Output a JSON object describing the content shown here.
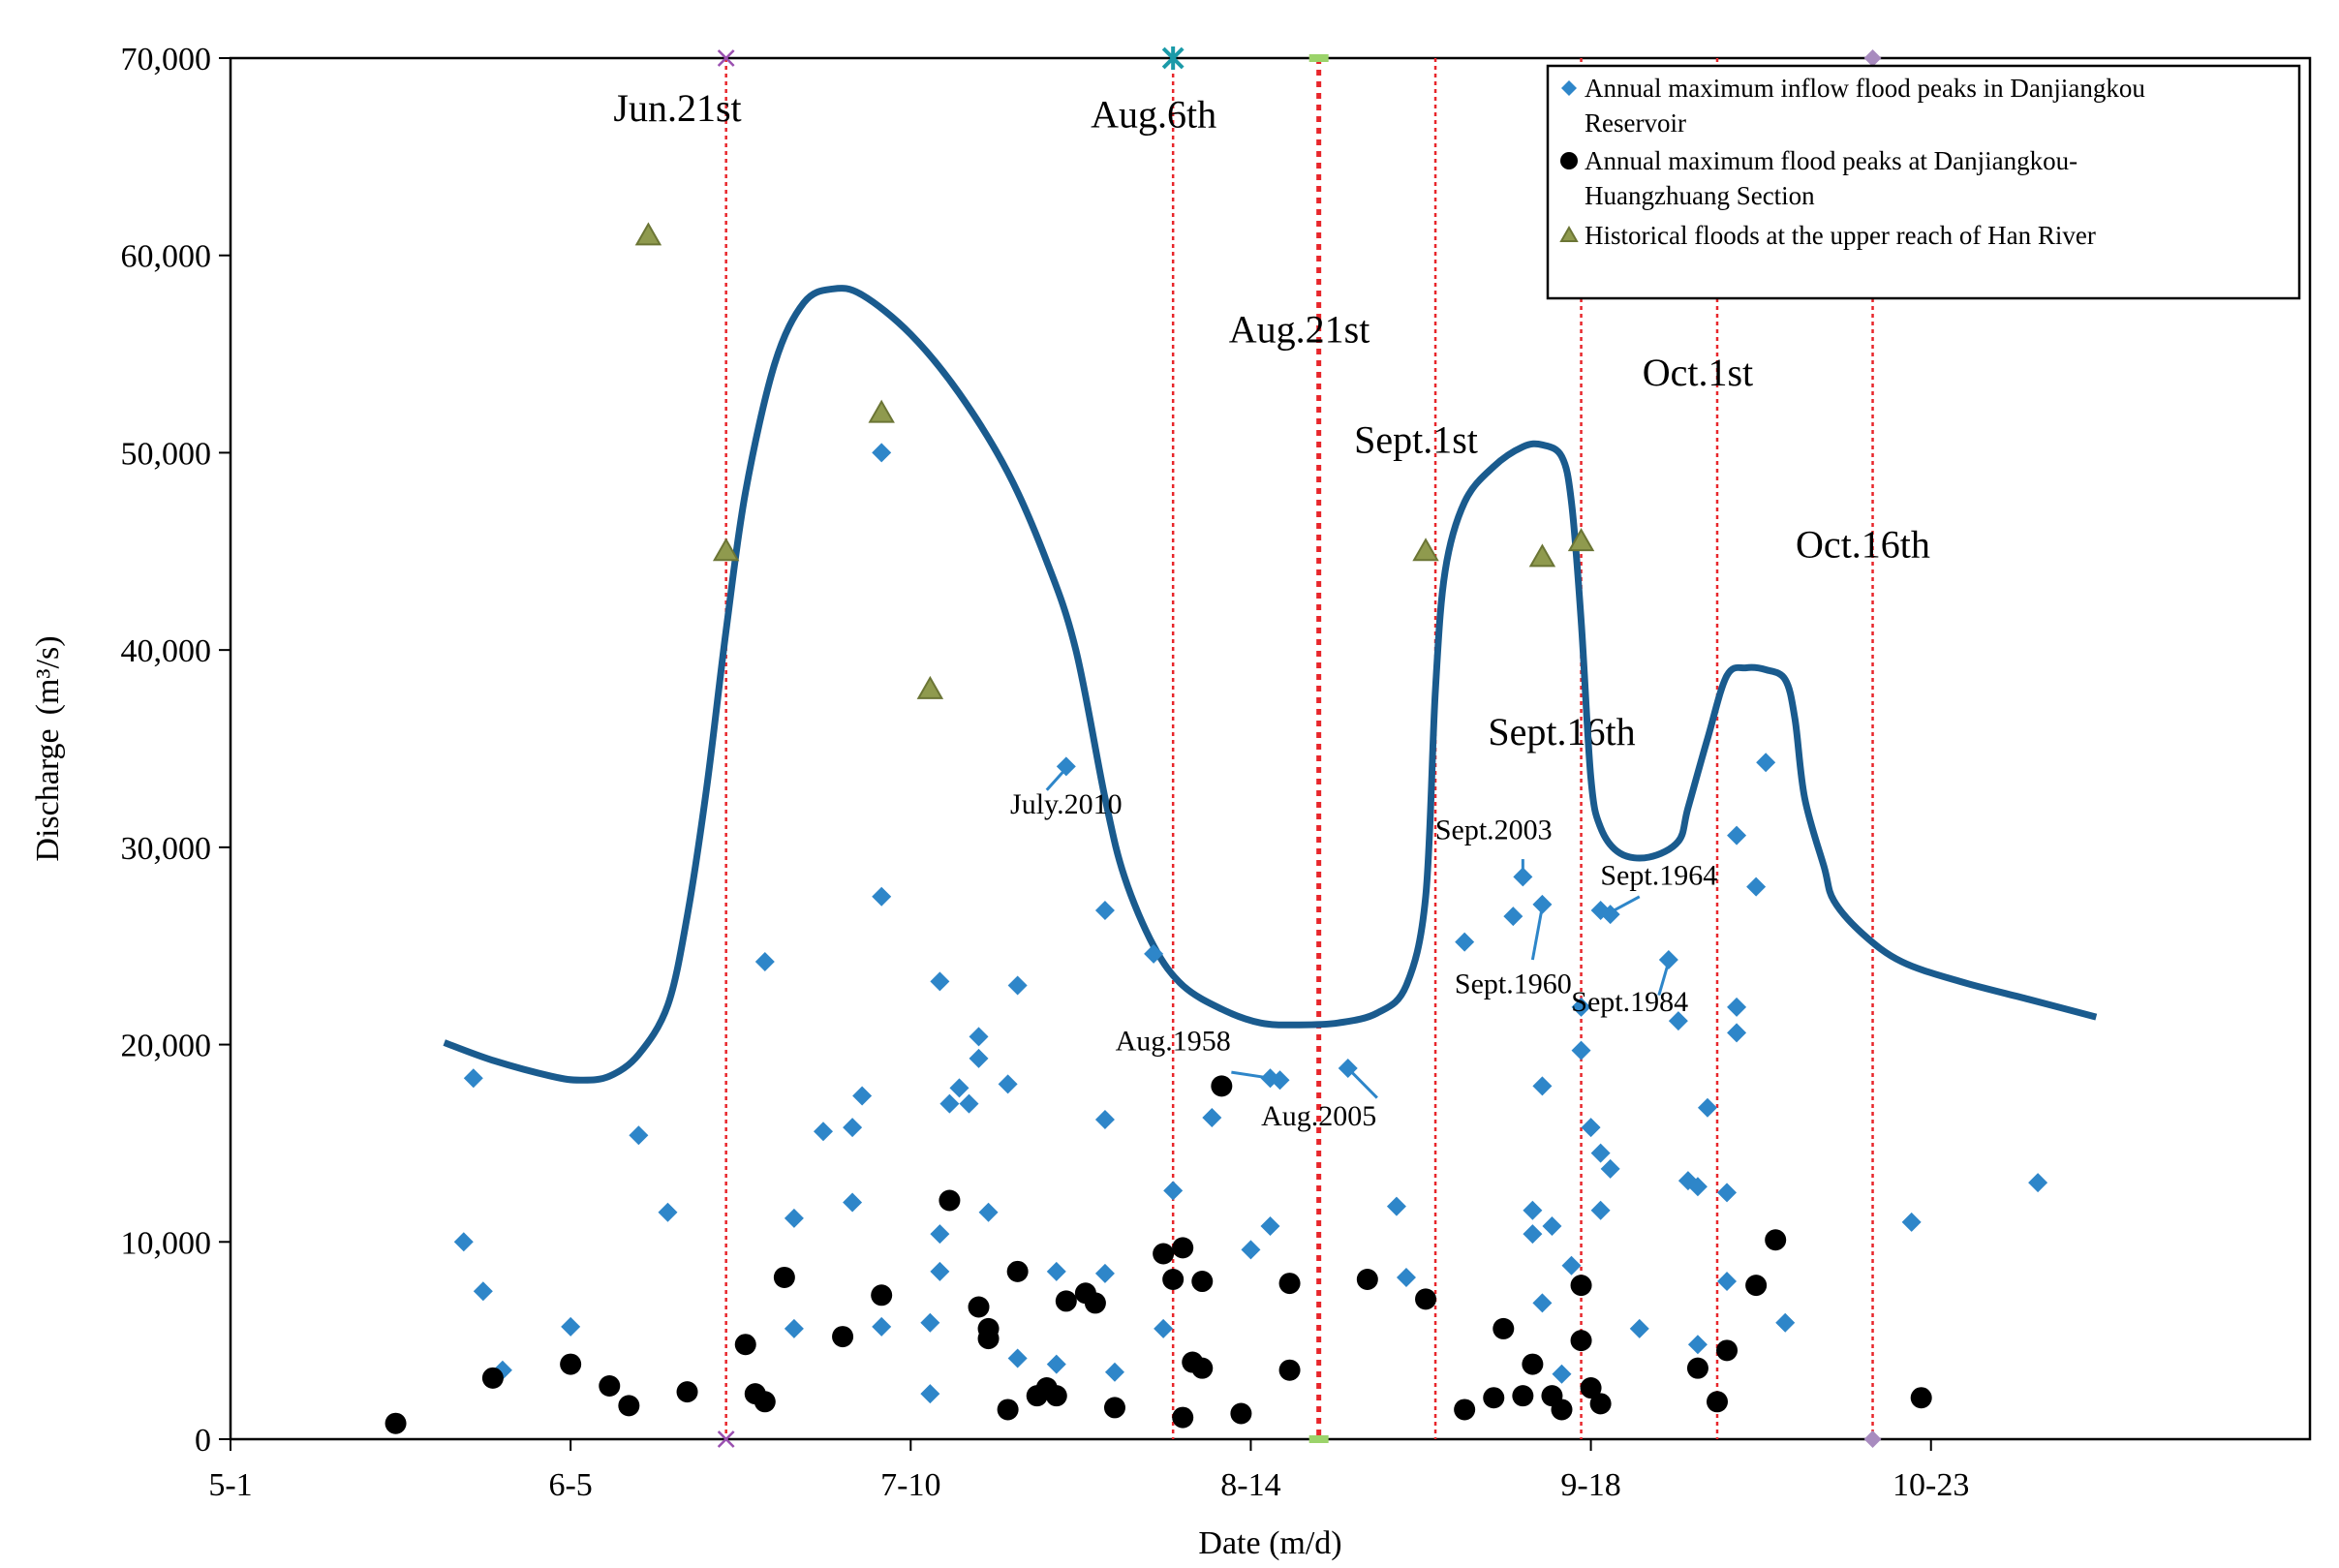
{
  "chart_data": {
    "type": "scatter",
    "xlabel": "Date (m/d)",
    "ylabel_main": "Discharge",
    "ylabel_unit": "(m³/s)",
    "x_unit": "day index (0 = May 1)",
    "xlim": [
      0,
      214
    ],
    "ylim": [
      0,
      70000
    ],
    "x_ticks": [
      {
        "value": 0,
        "label": "5-1"
      },
      {
        "value": 35,
        "label": "6-5"
      },
      {
        "value": 70,
        "label": "7-10"
      },
      {
        "value": 105,
        "label": "8-14"
      },
      {
        "value": 140,
        "label": "9-18"
      },
      {
        "value": 175,
        "label": "10-23"
      }
    ],
    "y_ticks": [
      {
        "value": 0,
        "label": "0"
      },
      {
        "value": 10000,
        "label": "10,000"
      },
      {
        "value": 20000,
        "label": "20,000"
      },
      {
        "value": 30000,
        "label": "30,000"
      },
      {
        "value": 40000,
        "label": "40,000"
      },
      {
        "value": 50000,
        "label": "50,000"
      },
      {
        "value": 60000,
        "label": "60,000"
      },
      {
        "value": 70000,
        "label": "70,000"
      }
    ],
    "period_lines": [
      {
        "x": 51,
        "label": "Jun.21st",
        "label_x": 46,
        "label_y": 66800,
        "bold": false,
        "top_marker": "x"
      },
      {
        "x": 97,
        "label": "Aug.6th",
        "label_x": 95,
        "label_y": 66500,
        "bold": false,
        "top_marker": "star"
      },
      {
        "x": 112,
        "label": "Aug.21st",
        "label_x": 110,
        "label_y": 55600,
        "bold": true,
        "top_marker": "dash"
      },
      {
        "x": 124,
        "label": "Sept.1st",
        "label_x": 122,
        "label_y": 50000,
        "bold": false,
        "top_marker": "none"
      },
      {
        "x": 139,
        "label": "Sept.16th",
        "label_x": 137,
        "label_y": 35200,
        "bold": false,
        "top_marker": "none"
      },
      {
        "x": 153,
        "label": "Oct.1st",
        "label_x": 151,
        "label_y": 53400,
        "bold": false,
        "top_marker": "none"
      },
      {
        "x": 169,
        "label": "Oct.16th",
        "label_x": 168,
        "label_y": 44700,
        "bold": false,
        "top_marker": "diamond"
      }
    ],
    "series": [
      {
        "name": "Annual maximum inflow flood peaks in Danjiangkou Reservoir",
        "marker": "diamond",
        "color": "#2e86c9",
        "points": [
          [
            25,
            18300
          ],
          [
            24,
            10000
          ],
          [
            26,
            7500
          ],
          [
            28,
            3500
          ],
          [
            35,
            5700
          ],
          [
            42,
            15400
          ],
          [
            45,
            11500
          ],
          [
            55,
            24200
          ],
          [
            58,
            11200
          ],
          [
            58,
            5600
          ],
          [
            61,
            15600
          ],
          [
            64,
            12000
          ],
          [
            64,
            15800
          ],
          [
            65,
            17400
          ],
          [
            67,
            50000
          ],
          [
            67,
            27500
          ],
          [
            67,
            5700
          ],
          [
            72,
            5900
          ],
          [
            72,
            2300
          ],
          [
            73,
            23200
          ],
          [
            73,
            10400
          ],
          [
            73,
            8500
          ],
          [
            74,
            17000
          ],
          [
            75,
            17800
          ],
          [
            76,
            17000
          ],
          [
            77,
            20400
          ],
          [
            77,
            19300
          ],
          [
            78,
            11500
          ],
          [
            80,
            18000
          ],
          [
            81,
            23000
          ],
          [
            81,
            4100
          ],
          [
            85,
            8500
          ],
          [
            85,
            3800
          ],
          [
            86,
            34100
          ],
          [
            90,
            26800
          ],
          [
            90,
            16200
          ],
          [
            90,
            8400
          ],
          [
            91,
            3400
          ],
          [
            95,
            24600
          ],
          [
            96,
            5600
          ],
          [
            97,
            12600
          ],
          [
            101,
            16300
          ],
          [
            105,
            9600
          ],
          [
            107,
            10800
          ],
          [
            107,
            18300
          ],
          [
            108,
            18200
          ],
          [
            115,
            18800
          ],
          [
            120,
            11800
          ],
          [
            121,
            8200
          ],
          [
            127,
            25200
          ],
          [
            132,
            26500
          ],
          [
            133,
            28500
          ],
          [
            134,
            11600
          ],
          [
            134,
            10400
          ],
          [
            135,
            6900
          ],
          [
            135,
            27100
          ],
          [
            135,
            17900
          ],
          [
            136,
            10800
          ],
          [
            137,
            3300
          ],
          [
            138,
            8800
          ],
          [
            139,
            21900
          ],
          [
            139,
            19700
          ],
          [
            140,
            15800
          ],
          [
            141,
            26800
          ],
          [
            141,
            14500
          ],
          [
            141,
            11600
          ],
          [
            142,
            13700
          ],
          [
            142,
            26600
          ],
          [
            145,
            5600
          ],
          [
            148,
            24300
          ],
          [
            149,
            21200
          ],
          [
            150,
            13100
          ],
          [
            151,
            12800
          ],
          [
            151,
            4800
          ],
          [
            152,
            16800
          ],
          [
            154,
            12500
          ],
          [
            154,
            8000
          ],
          [
            155,
            21900
          ],
          [
            155,
            20600
          ],
          [
            155,
            30600
          ],
          [
            157,
            28000
          ],
          [
            158,
            34300
          ],
          [
            160,
            5900
          ],
          [
            173,
            11000
          ],
          [
            186,
            13000
          ]
        ]
      },
      {
        "name": "Annual maximum flood peaks at Danjiangkou-Huangzhuang Section",
        "marker": "circle",
        "color": "#000000",
        "points": [
          [
            17,
            800
          ],
          [
            27,
            3100
          ],
          [
            35,
            3800
          ],
          [
            39,
            2700
          ],
          [
            41,
            1700
          ],
          [
            47,
            2400
          ],
          [
            53,
            4800
          ],
          [
            54,
            2300
          ],
          [
            55,
            1900
          ],
          [
            57,
            8200
          ],
          [
            63,
            5200
          ],
          [
            67,
            7300
          ],
          [
            74,
            12100
          ],
          [
            77,
            6700
          ],
          [
            78,
            5100
          ],
          [
            78,
            5600
          ],
          [
            80,
            1500
          ],
          [
            81,
            8500
          ],
          [
            83,
            2200
          ],
          [
            84,
            2600
          ],
          [
            85,
            2200
          ],
          [
            86,
            7000
          ],
          [
            88,
            7400
          ],
          [
            89,
            6900
          ],
          [
            91,
            1600
          ],
          [
            96,
            9400
          ],
          [
            97,
            8100
          ],
          [
            98,
            9700
          ],
          [
            98,
            1100
          ],
          [
            99,
            3900
          ],
          [
            100,
            3600
          ],
          [
            100,
            8000
          ],
          [
            102,
            17900
          ],
          [
            104,
            1300
          ],
          [
            109,
            7900
          ],
          [
            109,
            3500
          ],
          [
            117,
            8100
          ],
          [
            123,
            7100
          ],
          [
            127,
            1500
          ],
          [
            130,
            2100
          ],
          [
            131,
            5600
          ],
          [
            133,
            2200
          ],
          [
            134,
            3800
          ],
          [
            136,
            2200
          ],
          [
            137,
            1500
          ],
          [
            139,
            7800
          ],
          [
            139,
            5000
          ],
          [
            140,
            2600
          ],
          [
            141,
            1800
          ],
          [
            151,
            3600
          ],
          [
            153,
            1900
          ],
          [
            154,
            4500
          ],
          [
            157,
            7800
          ],
          [
            159,
            10100
          ],
          [
            174,
            2100
          ]
        ]
      },
      {
        "name": "Historical floods at the upper reach of Han River",
        "marker": "triangle",
        "color": "#8f9a4e",
        "points": [
          [
            43,
            61000
          ],
          [
            51,
            45000
          ],
          [
            67,
            52000
          ],
          [
            72,
            38000
          ],
          [
            123,
            45000
          ],
          [
            135,
            44700
          ],
          [
            139,
            45500
          ]
        ]
      }
    ],
    "envelope_curve": {
      "name": "outer envelope",
      "color": "#1a5b8e",
      "points": [
        [
          22,
          20100
        ],
        [
          27,
          19200
        ],
        [
          33,
          18400
        ],
        [
          36,
          18200
        ],
        [
          39,
          18400
        ],
        [
          42,
          19500
        ],
        [
          45,
          22000
        ],
        [
          47,
          26500
        ],
        [
          49,
          33000
        ],
        [
          51,
          41000
        ],
        [
          53,
          48000
        ],
        [
          56,
          54500
        ],
        [
          59,
          57600
        ],
        [
          62,
          58300
        ],
        [
          65,
          58000
        ],
        [
          70,
          56000
        ],
        [
          75,
          53000
        ],
        [
          80,
          49000
        ],
        [
          84,
          44500
        ],
        [
          87,
          40000
        ],
        [
          90,
          32500
        ],
        [
          92,
          28500
        ],
        [
          95,
          25000
        ],
        [
          98,
          23000
        ],
        [
          102,
          21800
        ],
        [
          106,
          21100
        ],
        [
          110,
          21000
        ],
        [
          114,
          21100
        ],
        [
          118,
          21600
        ],
        [
          121,
          23000
        ],
        [
          123,
          27500
        ],
        [
          124,
          38000
        ],
        [
          125,
          44000
        ],
        [
          127,
          47500
        ],
        [
          130,
          49300
        ],
        [
          133,
          50300
        ],
        [
          135,
          50400
        ],
        [
          137,
          49800
        ],
        [
          138,
          47500
        ],
        [
          139,
          41500
        ],
        [
          140,
          33500
        ],
        [
          141,
          31000
        ],
        [
          143,
          29700
        ],
        [
          146,
          29500
        ],
        [
          149,
          30300
        ],
        [
          150,
          32000
        ],
        [
          152,
          35500
        ],
        [
          154,
          38700
        ],
        [
          156,
          39100
        ],
        [
          158,
          39000
        ],
        [
          160,
          38500
        ],
        [
          161,
          36500
        ],
        [
          162,
          32500
        ],
        [
          164,
          29000
        ],
        [
          165,
          27300
        ],
        [
          168,
          25600
        ],
        [
          172,
          24200
        ],
        [
          178,
          23200
        ],
        [
          185,
          22300
        ],
        [
          192,
          21400
        ]
      ]
    },
    "year_annotations": [
      {
        "label": "July.2010",
        "text_x": 86,
        "text_y": 31700,
        "leader_from": [
          84,
          32900
        ],
        "leader_to": [
          86,
          34000
        ]
      },
      {
        "label": "Sept.2003",
        "text_x": 130,
        "text_y": 30400,
        "leader_from": [
          133,
          29400
        ],
        "leader_to": [
          133,
          28600
        ]
      },
      {
        "label": "Sept.1964",
        "text_x": 147,
        "text_y": 28100,
        "leader_from": [
          145,
          27500
        ],
        "leader_to": [
          142,
          26700
        ]
      },
      {
        "label": "Sept.1960",
        "text_x": 132,
        "text_y": 22600,
        "leader_from": [
          134,
          24300
        ],
        "leader_to": [
          135,
          27000
        ]
      },
      {
        "label": "Sept.1984",
        "text_x": 144,
        "text_y": 21700,
        "leader_from": [
          147,
          22500
        ],
        "leader_to": [
          148,
          24200
        ]
      },
      {
        "label": "Aug.1958",
        "text_x": 97,
        "text_y": 19700,
        "leader_from": [
          103,
          18600
        ],
        "leader_to": [
          107,
          18300
        ]
      },
      {
        "label": "Aug.2005",
        "text_x": 112,
        "text_y": 15900,
        "leader_from": [
          118,
          17300
        ],
        "leader_to": [
          115,
          18800
        ]
      }
    ],
    "legend": {
      "position": "top-right",
      "entries": [
        {
          "marker": "diamond",
          "color": "#2e86c9",
          "lines": [
            "Annual maximum inflow flood peaks in Danjiangkou",
            "Reservoir"
          ]
        },
        {
          "marker": "circle",
          "color": "#000000",
          "lines": [
            "Annual maximum flood peaks at Danjiangkou-",
            "Huangzhuang Section"
          ]
        },
        {
          "marker": "triangle",
          "color": "#8f9a4e",
          "lines": [
            "Historical floods at the upper reach of Han River"
          ]
        }
      ]
    }
  }
}
